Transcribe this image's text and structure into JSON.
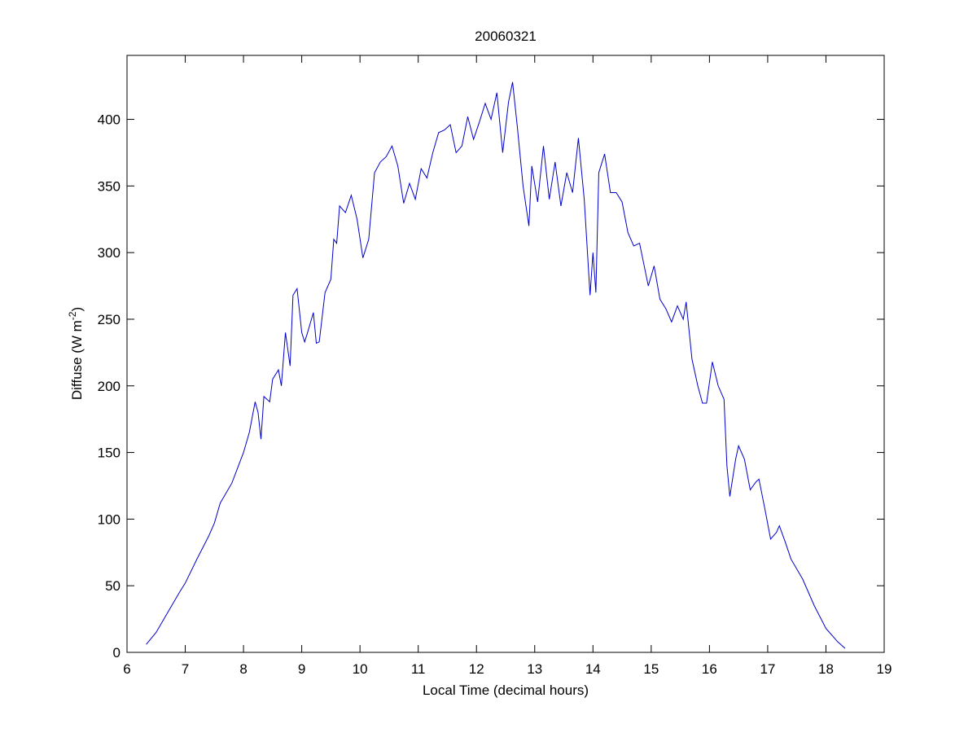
{
  "chart_data": {
    "type": "line",
    "title": "20060321",
    "xlabel": "Local Time (decimal hours)",
    "ylabel": [
      "Diffuse (W m",
      "-2",
      ")"
    ],
    "xlim": [
      6,
      19
    ],
    "xticks": [
      6,
      7,
      8,
      9,
      10,
      11,
      12,
      13,
      14,
      15,
      16,
      17,
      18,
      19
    ],
    "ylim": [
      0,
      448
    ],
    "yticks": [
      0,
      50,
      100,
      150,
      200,
      250,
      300,
      350,
      400
    ],
    "x": [
      6.33,
      6.5,
      6.7,
      6.9,
      7.0,
      7.2,
      7.4,
      7.5,
      7.6,
      7.8,
      8.0,
      8.1,
      8.2,
      8.25,
      8.3,
      8.35,
      8.45,
      8.5,
      8.6,
      8.65,
      8.72,
      8.8,
      8.85,
      8.92,
      9.0,
      9.05,
      9.1,
      9.2,
      9.25,
      9.3,
      9.4,
      9.5,
      9.55,
      9.6,
      9.65,
      9.75,
      9.85,
      9.95,
      10.05,
      10.15,
      10.25,
      10.35,
      10.45,
      10.55,
      10.65,
      10.75,
      10.85,
      10.95,
      11.05,
      11.15,
      11.25,
      11.35,
      11.45,
      11.55,
      11.65,
      11.75,
      11.85,
      11.95,
      12.05,
      12.15,
      12.25,
      12.35,
      12.45,
      12.55,
      12.62,
      12.7,
      12.8,
      12.9,
      12.95,
      13.05,
      13.15,
      13.25,
      13.35,
      13.45,
      13.55,
      13.65,
      13.75,
      13.85,
      13.95,
      14.0,
      14.05,
      14.1,
      14.2,
      14.3,
      14.4,
      14.5,
      14.6,
      14.7,
      14.8,
      14.95,
      15.05,
      15.15,
      15.25,
      15.35,
      15.45,
      15.55,
      15.6,
      15.7,
      15.8,
      15.88,
      15.95,
      16.05,
      16.15,
      16.25,
      16.3,
      16.35,
      16.45,
      16.5,
      16.6,
      16.7,
      16.8,
      16.85,
      16.95,
      17.05,
      17.15,
      17.2,
      17.3,
      17.4,
      17.6,
      17.8,
      18.0,
      18.2,
      18.33
    ],
    "series": [
      {
        "color": "#0000cc",
        "values": [
          6,
          15,
          30,
          45,
          52,
          70,
          87,
          97,
          112,
          127,
          150,
          165,
          188,
          180,
          160,
          192,
          188,
          205,
          212,
          200,
          240,
          215,
          268,
          273,
          240,
          233,
          240,
          255,
          232,
          233,
          270,
          280,
          310,
          307,
          335,
          330,
          343,
          325,
          296,
          310,
          360,
          368,
          372,
          380,
          365,
          337,
          352,
          340,
          363,
          356,
          375,
          390,
          392,
          396,
          375,
          380,
          402,
          385,
          398,
          412,
          400,
          420,
          375,
          413,
          428,
          395,
          350,
          320,
          365,
          338,
          380,
          340,
          368,
          335,
          360,
          345,
          386,
          340,
          268,
          300,
          270,
          360,
          374,
          345,
          345,
          338,
          315,
          305,
          307,
          275,
          290,
          265,
          258,
          248,
          260,
          250,
          263,
          220,
          200,
          187,
          187,
          218,
          200,
          190,
          140,
          117,
          145,
          155,
          145,
          122,
          128,
          130,
          108,
          85,
          90,
          95,
          83,
          70,
          55,
          35,
          18,
          8,
          3
        ]
      }
    ]
  }
}
